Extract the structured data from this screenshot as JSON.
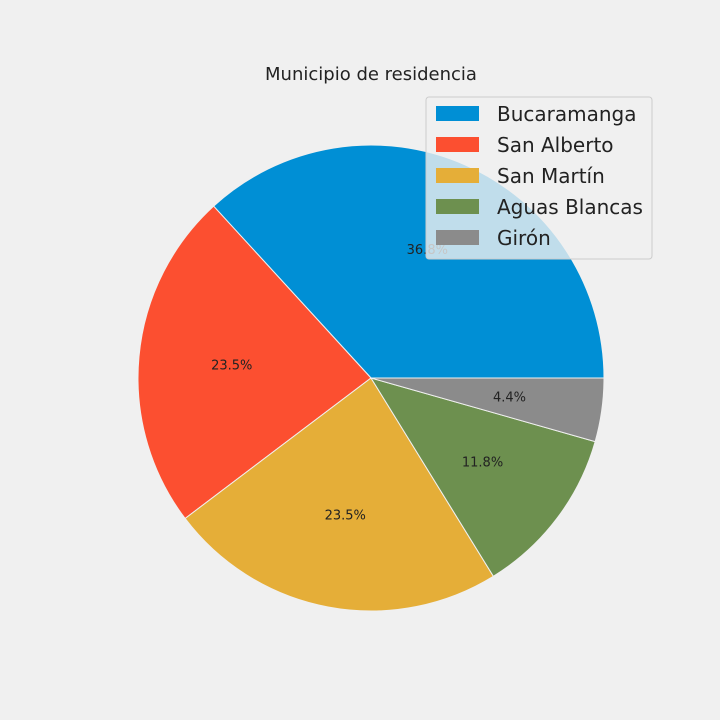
{
  "chart_data": {
    "type": "pie",
    "title": "Municipio de residencia",
    "categories": [
      "Bucaramanga",
      "San Alberto",
      "San Martín",
      "Aguas Blancas",
      "Girón"
    ],
    "values": [
      36.8,
      23.5,
      23.5,
      11.8,
      4.4
    ],
    "value_labels": [
      "36.8%",
      "23.5%",
      "23.5%",
      "11.8%",
      "4.4%"
    ],
    "colors": [
      "#008fd5",
      "#fc4f30",
      "#e5ae38",
      "#6d904f",
      "#8b8b8b"
    ],
    "start_angle_deg": 0,
    "direction": "counterclockwise",
    "legend_placement": "top-right"
  }
}
